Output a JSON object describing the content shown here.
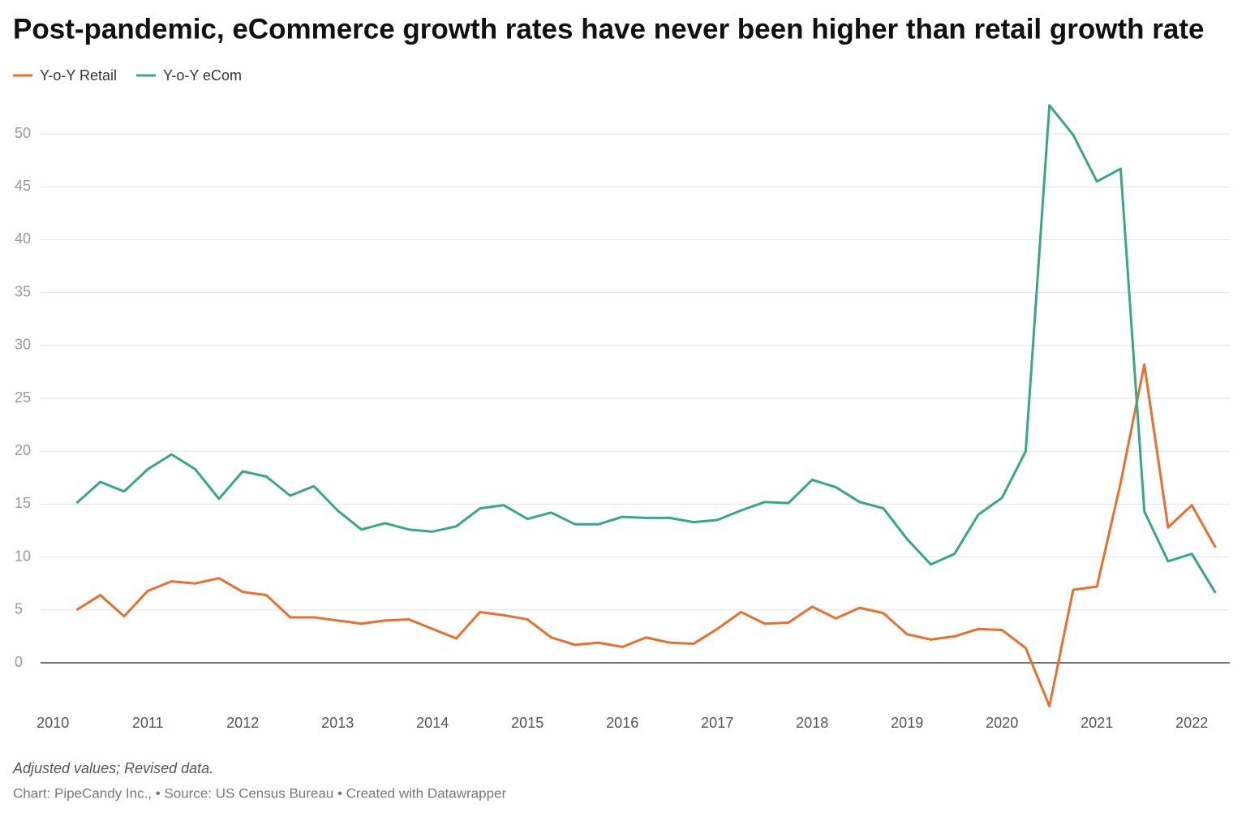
{
  "chart_data": {
    "type": "line",
    "title": "Post-pandemic, eCommerce growth rates have never been higher than retail growth rate",
    "note": "Adjusted values; Revised data.",
    "source": "Chart: PipeCandy Inc., • Source: US Census Bureau • Created with Datawrapper",
    "x": [
      2010.25,
      2010.5,
      2010.75,
      2011,
      2011.25,
      2011.5,
      2011.75,
      2012,
      2012.25,
      2012.5,
      2012.75,
      2013,
      2013.25,
      2013.5,
      2013.75,
      2014,
      2014.25,
      2014.5,
      2014.75,
      2015,
      2015.25,
      2015.5,
      2015.75,
      2016,
      2016.25,
      2016.5,
      2016.75,
      2017,
      2017.25,
      2017.5,
      2017.75,
      2018,
      2018.25,
      2018.5,
      2018.75,
      2019,
      2019.25,
      2019.5,
      2019.75,
      2020,
      2020.25,
      2020.5,
      2020.75,
      2021,
      2021.25,
      2021.5,
      2021.75,
      2022,
      2022.25
    ],
    "series": [
      {
        "name": "Y-o-Y Retail",
        "color": "#e8702d",
        "values": [
          5.0,
          6.4,
          4.4,
          6.8,
          7.7,
          7.5,
          8.0,
          6.7,
          6.4,
          4.3,
          4.3,
          4.0,
          3.7,
          4.0,
          4.1,
          3.2,
          2.3,
          4.8,
          4.5,
          4.1,
          2.4,
          1.7,
          1.9,
          1.5,
          2.4,
          1.9,
          1.8,
          3.2,
          4.8,
          3.7,
          3.8,
          5.3,
          4.2,
          5.2,
          4.7,
          2.7,
          2.2,
          2.5,
          3.2,
          3.1,
          1.4,
          -4.1,
          6.9,
          7.2,
          17.0,
          28.2,
          12.8,
          14.9,
          10.9
        ]
      },
      {
        "name": "Y-o-Y eCom",
        "color": "#36a886",
        "values": [
          15.1,
          17.1,
          16.2,
          18.3,
          19.7,
          18.3,
          15.5,
          18.1,
          17.6,
          15.8,
          16.7,
          14.4,
          12.6,
          13.2,
          12.6,
          12.4,
          12.9,
          14.6,
          14.9,
          13.6,
          14.2,
          13.1,
          13.1,
          13.8,
          13.7,
          13.7,
          13.3,
          13.5,
          14.4,
          15.2,
          15.1,
          17.3,
          16.6,
          15.2,
          14.6,
          11.7,
          9.3,
          10.3,
          14.0,
          15.6,
          20.0,
          52.7,
          49.9,
          45.5,
          46.7,
          14.3,
          9.6,
          10.3,
          6.6
        ]
      }
    ],
    "xlim": [
      2009.87,
      2022.4
    ],
    "xticks": [
      2010,
      2011,
      2012,
      2013,
      2014,
      2015,
      2016,
      2017,
      2018,
      2019,
      2020,
      2021,
      2022
    ],
    "ylim": [
      -4.5,
      53
    ],
    "yticks": [
      0,
      5,
      10,
      15,
      20,
      25,
      30,
      35,
      40,
      45,
      50
    ],
    "grid": true
  }
}
